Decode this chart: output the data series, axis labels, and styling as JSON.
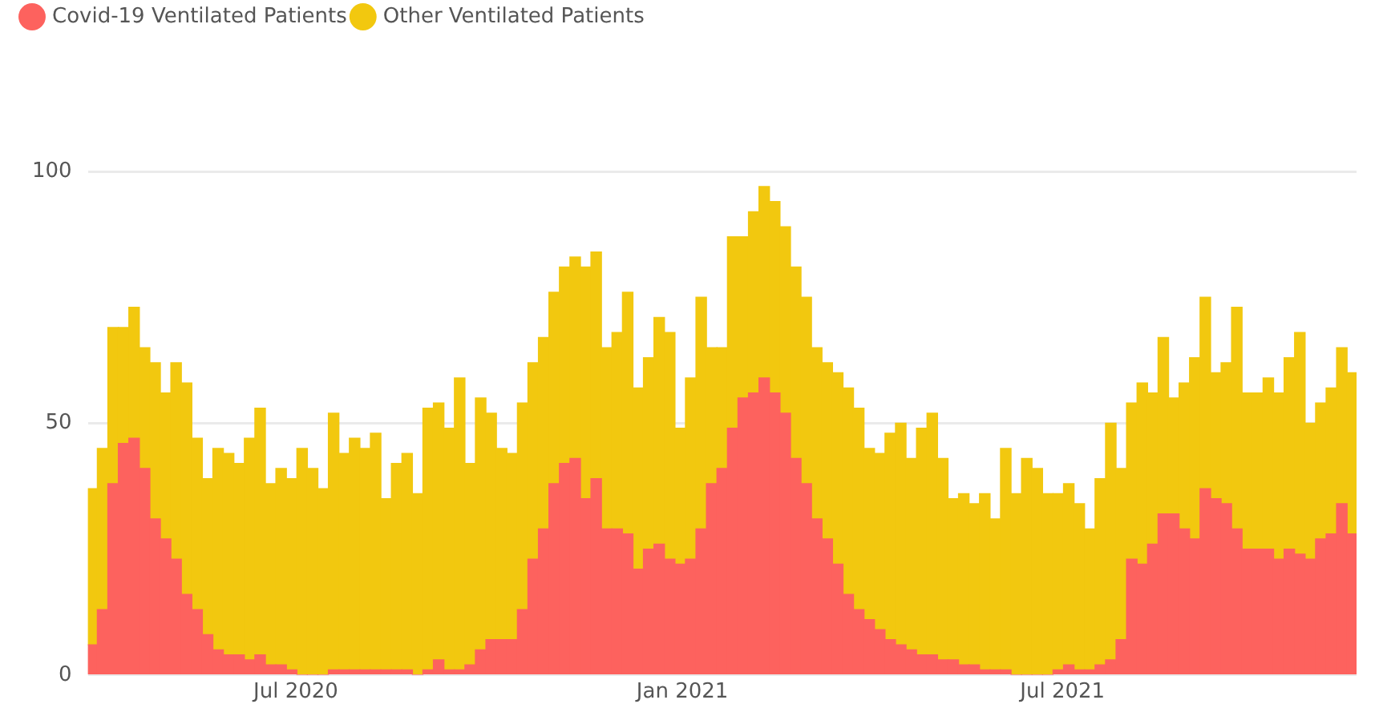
{
  "chart_data": {
    "type": "bar",
    "stacked": true,
    "legend": "top left",
    "grid": "y",
    "x": [
      "2020-03-26",
      "2020-03-31",
      "2020-04-05",
      "2020-04-10",
      "2020-04-15",
      "2020-04-20",
      "2020-04-25",
      "2020-04-30",
      "2020-05-05",
      "2020-05-10",
      "2020-05-15",
      "2020-05-20",
      "2020-05-25",
      "2020-05-30",
      "2020-06-04",
      "2020-06-09",
      "2020-06-14",
      "2020-06-19",
      "2020-06-24",
      "2020-06-29",
      "2020-07-04",
      "2020-07-09",
      "2020-07-14",
      "2020-07-19",
      "2020-07-24",
      "2020-07-29",
      "2020-08-03",
      "2020-08-08",
      "2020-08-13",
      "2020-08-18",
      "2020-08-23",
      "2020-08-28",
      "2020-09-02",
      "2020-09-07",
      "2020-09-12",
      "2020-09-17",
      "2020-09-22",
      "2020-09-27",
      "2020-10-02",
      "2020-10-07",
      "2020-10-12",
      "2020-10-17",
      "2020-10-22",
      "2020-10-27",
      "2020-11-01",
      "2020-11-06",
      "2020-11-11",
      "2020-11-16",
      "2020-11-21",
      "2020-11-26",
      "2020-12-01",
      "2020-12-06",
      "2020-12-11",
      "2020-12-16",
      "2020-12-21",
      "2020-12-26",
      "2020-12-31",
      "2021-01-05",
      "2021-01-10",
      "2021-01-15",
      "2021-01-20",
      "2021-01-25",
      "2021-01-30",
      "2021-02-04",
      "2021-02-09",
      "2021-02-14",
      "2021-02-19",
      "2021-02-24",
      "2021-03-01",
      "2021-03-06",
      "2021-03-11",
      "2021-03-16",
      "2021-03-21",
      "2021-03-26",
      "2021-03-31",
      "2021-04-05",
      "2021-04-10",
      "2021-04-15",
      "2021-04-20",
      "2021-04-25",
      "2021-04-30",
      "2021-05-05",
      "2021-05-10",
      "2021-05-15",
      "2021-05-20",
      "2021-05-25",
      "2021-05-30",
      "2021-06-04",
      "2021-06-09",
      "2021-06-14",
      "2021-06-19",
      "2021-06-24",
      "2021-06-29",
      "2021-07-04",
      "2021-07-09",
      "2021-07-14",
      "2021-07-19",
      "2021-07-24",
      "2021-07-29",
      "2021-08-03",
      "2021-08-08",
      "2021-08-13",
      "2021-08-18",
      "2021-08-23",
      "2021-08-28",
      "2021-09-02",
      "2021-09-07",
      "2021-09-12",
      "2021-09-17",
      "2021-09-22",
      "2021-09-27",
      "2021-10-02",
      "2021-10-07",
      "2021-10-12",
      "2021-10-17",
      "2021-10-22",
      "2021-10-27",
      "2021-11-01",
      "2021-11-06",
      "2021-11-11",
      "2021-11-16"
    ],
    "series": [
      {
        "name": "Covid-19 Ventilated Patients",
        "color": "#fd625e",
        "values": [
          6,
          13,
          38,
          46,
          47,
          41,
          31,
          27,
          23,
          16,
          13,
          8,
          5,
          4,
          4,
          3,
          4,
          2,
          2,
          1,
          0,
          0,
          0,
          1,
          1,
          1,
          1,
          1,
          1,
          1,
          1,
          0,
          1,
          3,
          1,
          1,
          2,
          5,
          7,
          7,
          7,
          13,
          23,
          29,
          38,
          42,
          43,
          35,
          39,
          29,
          29,
          28,
          21,
          25,
          26,
          23,
          22,
          23,
          29,
          38,
          41,
          49,
          55,
          56,
          59,
          56,
          52,
          43,
          38,
          31,
          27,
          22,
          16,
          13,
          11,
          9,
          7,
          6,
          5,
          4,
          4,
          3,
          3,
          2,
          2,
          1,
          1,
          1,
          0,
          0,
          0,
          0,
          1,
          2,
          1,
          1,
          2,
          3,
          7,
          23,
          22,
          26,
          32,
          32,
          29,
          27,
          37,
          35,
          34,
          29,
          25,
          25,
          25,
          23,
          25,
          24,
          23,
          27,
          28,
          34,
          28
        ]
      },
      {
        "name": "Other Ventilated Patients",
        "color": "#f2c80f",
        "values": [
          31,
          32,
          31,
          23,
          26,
          24,
          31,
          29,
          39,
          42,
          34,
          31,
          40,
          40,
          38,
          44,
          49,
          36,
          39,
          38,
          45,
          41,
          37,
          51,
          43,
          46,
          44,
          47,
          34,
          41,
          43,
          36,
          52,
          51,
          48,
          58,
          40,
          50,
          45,
          38,
          37,
          41,
          39,
          38,
          38,
          39,
          40,
          46,
          45,
          36,
          39,
          48,
          36,
          38,
          45,
          45,
          27,
          36,
          46,
          27,
          24,
          38,
          32,
          36,
          38,
          38,
          37,
          38,
          37,
          34,
          35,
          38,
          41,
          40,
          34,
          35,
          41,
          44,
          38,
          45,
          48,
          40,
          32,
          34,
          32,
          35,
          30,
          44,
          36,
          43,
          41,
          36,
          35,
          36,
          33,
          28,
          37,
          47,
          34,
          31,
          36,
          30,
          35,
          23,
          29,
          36,
          38,
          25,
          28,
          44,
          31,
          31,
          34,
          33,
          38,
          44,
          27,
          27,
          29,
          31,
          32
        ]
      }
    ],
    "xlim": [
      "2020-03-24",
      "2021-11-18"
    ],
    "xticks": [
      {
        "value": "2020-07-01",
        "label": "Jul 2020"
      },
      {
        "value": "2021-01-01",
        "label": "Jan 2021"
      },
      {
        "value": "2021-07-01",
        "label": "Jul 2021"
      }
    ],
    "ylim": [
      0,
      100
    ],
    "yticks": [
      0,
      50,
      100
    ]
  }
}
